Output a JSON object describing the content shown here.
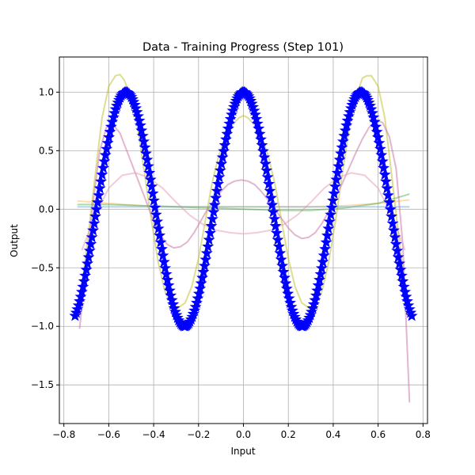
{
  "chart_data": {
    "type": "line",
    "title": "Data - Training Progress (Step 101)",
    "xlabel": "Input",
    "ylabel": "Output",
    "xlim": [
      -0.82,
      0.82
    ],
    "ylim": [
      -1.83,
      1.3
    ],
    "grid": true,
    "x_ticks": [
      -0.8,
      -0.6,
      -0.4,
      -0.2,
      0.0,
      0.2,
      0.4,
      0.6,
      0.8
    ],
    "x_tick_labels": [
      "−0.8",
      "−0.6",
      "−0.4",
      "−0.2",
      "0.0",
      "0.2",
      "0.4",
      "0.6",
      "0.8"
    ],
    "y_ticks": [
      -1.5,
      -1.0,
      -0.5,
      0.0,
      0.5,
      1.0
    ],
    "y_tick_labels": [
      "−1.5",
      "−1.0",
      "−0.5",
      "0.0",
      "0.5",
      "1.0"
    ],
    "series": [
      {
        "color": "#bcbd22",
        "opacity": 0.5,
        "x": [
          -0.75,
          -0.72,
          -0.69,
          -0.66,
          -0.63,
          -0.6,
          -0.57,
          -0.55,
          -0.53,
          -0.5,
          -0.47,
          -0.44,
          -0.41,
          -0.38,
          -0.35,
          -0.32,
          -0.29,
          -0.26,
          -0.23,
          -0.2,
          -0.17,
          -0.14,
          -0.11,
          -0.08,
          -0.05,
          -0.02,
          0.0,
          0.02,
          0.05,
          0.08,
          0.11,
          0.14,
          0.17,
          0.2,
          0.23,
          0.26,
          0.29,
          0.32,
          0.35,
          0.38,
          0.41,
          0.44,
          0.47,
          0.5,
          0.53,
          0.55,
          0.57,
          0.6,
          0.63,
          0.66,
          0.69,
          0.72,
          0.75
        ],
        "y": [
          -0.9,
          -0.65,
          -0.2,
          0.3,
          0.78,
          1.05,
          1.14,
          1.15,
          1.1,
          0.95,
          0.68,
          0.3,
          -0.1,
          -0.45,
          -0.7,
          -0.82,
          -0.84,
          -0.8,
          -0.66,
          -0.42,
          -0.1,
          0.22,
          0.46,
          0.62,
          0.72,
          0.78,
          0.8,
          0.78,
          0.72,
          0.62,
          0.46,
          0.22,
          -0.1,
          -0.42,
          -0.66,
          -0.8,
          -0.84,
          -0.82,
          -0.7,
          -0.45,
          -0.1,
          0.3,
          0.68,
          0.95,
          1.12,
          1.14,
          1.14,
          1.05,
          0.78,
          0.3,
          -0.2,
          -0.65,
          -0.9
        ]
      },
      {
        "color": "#cc79a7",
        "opacity": 0.55,
        "x": [
          -0.73,
          -0.7,
          -0.67,
          -0.64,
          -0.61,
          -0.58,
          -0.55,
          -0.52,
          -0.49,
          -0.46,
          -0.43,
          -0.4,
          -0.37,
          -0.34,
          -0.31,
          -0.28,
          -0.25,
          -0.22,
          -0.19,
          -0.16,
          -0.13,
          -0.1,
          -0.07,
          -0.04,
          -0.01,
          0.02,
          0.05,
          0.08,
          0.11,
          0.14,
          0.17,
          0.2,
          0.23,
          0.26,
          0.29,
          0.32,
          0.35,
          0.38,
          0.41,
          0.44,
          0.47,
          0.5,
          0.53,
          0.56,
          0.59,
          0.62,
          0.65,
          0.68,
          0.71,
          0.74
        ],
        "y": [
          -1.02,
          -0.5,
          0.05,
          0.5,
          0.7,
          0.72,
          0.65,
          0.5,
          0.35,
          0.2,
          0.05,
          -0.1,
          -0.22,
          -0.3,
          -0.33,
          -0.32,
          -0.28,
          -0.2,
          -0.1,
          0.0,
          0.08,
          0.15,
          0.21,
          0.24,
          0.25,
          0.24,
          0.21,
          0.15,
          0.08,
          0.0,
          -0.08,
          -0.16,
          -0.22,
          -0.25,
          -0.24,
          -0.2,
          -0.12,
          -0.02,
          0.1,
          0.22,
          0.35,
          0.48,
          0.6,
          0.7,
          0.76,
          0.74,
          0.62,
          0.35,
          -0.3,
          -1.65
        ]
      },
      {
        "color": "#e8a0b8",
        "opacity": 0.55,
        "x": [
          -0.72,
          -0.66,
          -0.6,
          -0.54,
          -0.48,
          -0.42,
          -0.36,
          -0.3,
          -0.24,
          -0.18,
          -0.12,
          -0.06,
          0.0,
          0.06,
          0.12,
          0.18,
          0.24,
          0.3,
          0.36,
          0.42,
          0.48,
          0.54,
          0.6,
          0.66,
          0.72
        ],
        "y": [
          -0.35,
          -0.05,
          0.18,
          0.29,
          0.31,
          0.27,
          0.18,
          0.06,
          -0.05,
          -0.13,
          -0.18,
          -0.2,
          -0.21,
          -0.2,
          -0.18,
          -0.13,
          -0.05,
          0.06,
          0.18,
          0.27,
          0.31,
          0.29,
          0.18,
          -0.05,
          -0.35
        ]
      },
      {
        "color": "#ffb347",
        "opacity": 0.45,
        "x": [
          -0.74,
          -0.6,
          -0.45,
          -0.3,
          -0.15,
          0.0,
          0.15,
          0.3,
          0.45,
          0.6,
          0.74
        ],
        "y": [
          0.07,
          0.05,
          0.03,
          0.02,
          0.02,
          0.02,
          0.02,
          0.02,
          0.03,
          0.05,
          0.08
        ]
      },
      {
        "color": "#2ca02c",
        "opacity": 0.4,
        "x": [
          -0.74,
          -0.6,
          -0.45,
          -0.3,
          -0.15,
          0.0,
          0.15,
          0.3,
          0.45,
          0.6,
          0.74
        ],
        "y": [
          0.04,
          0.04,
          0.03,
          0.02,
          0.01,
          0.0,
          -0.01,
          -0.01,
          0.01,
          0.05,
          0.13
        ]
      },
      {
        "color": "#6baed6",
        "opacity": 0.5,
        "x": [
          -0.74,
          -0.5,
          -0.25,
          0.0,
          0.25,
          0.5,
          0.74
        ],
        "y": [
          0.02,
          0.02,
          0.02,
          0.02,
          0.02,
          0.02,
          0.02
        ]
      }
    ],
    "target": {
      "marker": "star",
      "color": "#0000ff",
      "function": "cos(12x)",
      "x_range": [
        -0.75,
        0.75
      ],
      "num_points": 300
    }
  }
}
